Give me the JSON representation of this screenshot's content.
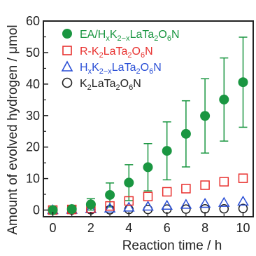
{
  "chart_data": {
    "type": "scatter",
    "xlabel": "Reaction time / h",
    "ylabel": "Amount of evolved hydrogen / μmol",
    "xlim": [
      0,
      10.5
    ],
    "ylim": [
      -1.5,
      60
    ],
    "xticks": [
      "0",
      "2",
      "4",
      "6",
      "8",
      "10"
    ],
    "yticks": [
      "0",
      "10",
      "20",
      "30",
      "40",
      "50",
      "60"
    ],
    "legend_position": "top-left",
    "series": [
      {
        "name": "EA/HxK2−xLaTa2O6N",
        "legend": {
          "a": "EA/H",
          "b": "x",
          "c": "K",
          "d": "2−x",
          "e": "LaTa",
          "f": "2",
          "g": "O",
          "h": "6",
          "i": "N"
        },
        "marker": "filled-circle",
        "color": "#1a9641",
        "x": [
          0,
          1,
          2,
          3,
          4,
          5,
          6,
          7,
          8,
          9,
          10
        ],
        "y": [
          0,
          0.3,
          1.8,
          4.8,
          8.7,
          13.6,
          18.8,
          24.2,
          29.9,
          35.1,
          40.6
        ],
        "error": [
          0,
          0.5,
          1.8,
          3.8,
          5.7,
          7.5,
          9.2,
          10.5,
          11.8,
          13.2,
          14.3
        ]
      },
      {
        "name": "R-K2LaTa2O6N",
        "legend": {
          "a": "R-K",
          "b": "2",
          "c": "LaTa",
          "d": "2",
          "e": "O",
          "f": "6",
          "g": "N"
        },
        "marker": "open-square",
        "color": "#e8312f",
        "x": [
          0,
          1,
          2,
          3,
          4,
          5,
          6,
          7,
          8,
          9,
          10
        ],
        "y": [
          0,
          0.2,
          0.6,
          1.3,
          2.9,
          4.3,
          5.8,
          6.8,
          7.9,
          9.0,
          10.1
        ]
      },
      {
        "name": "HxK2−xLaTa2O6N",
        "legend": {
          "a": "H",
          "b": "x",
          "c": "K",
          "d": "2−x",
          "e": "LaTa",
          "f": "2",
          "g": "O",
          "h": "6",
          "i": "N"
        },
        "marker": "open-triangle",
        "color": "#2a4fd6",
        "x": [
          0,
          1,
          2,
          3,
          4,
          5,
          6,
          7,
          8,
          9,
          10
        ],
        "y": [
          0,
          0.1,
          0.3,
          0.5,
          0.8,
          1.1,
          1.4,
          1.7,
          2.0,
          2.3,
          2.7
        ]
      },
      {
        "name": "K2LaTa2O6N",
        "legend": {
          "a": "K",
          "b": "2",
          "c": "LaTa",
          "d": "2",
          "e": "O",
          "f": "6",
          "g": "N"
        },
        "marker": "open-circle",
        "color": "#222222",
        "x": [
          0,
          1,
          2,
          3,
          4,
          5,
          6,
          7,
          8,
          9,
          10
        ],
        "y": [
          0,
          0,
          0.1,
          0.1,
          0.2,
          0.2,
          0.3,
          0.3,
          0.4,
          0.4,
          0.5
        ]
      }
    ]
  }
}
